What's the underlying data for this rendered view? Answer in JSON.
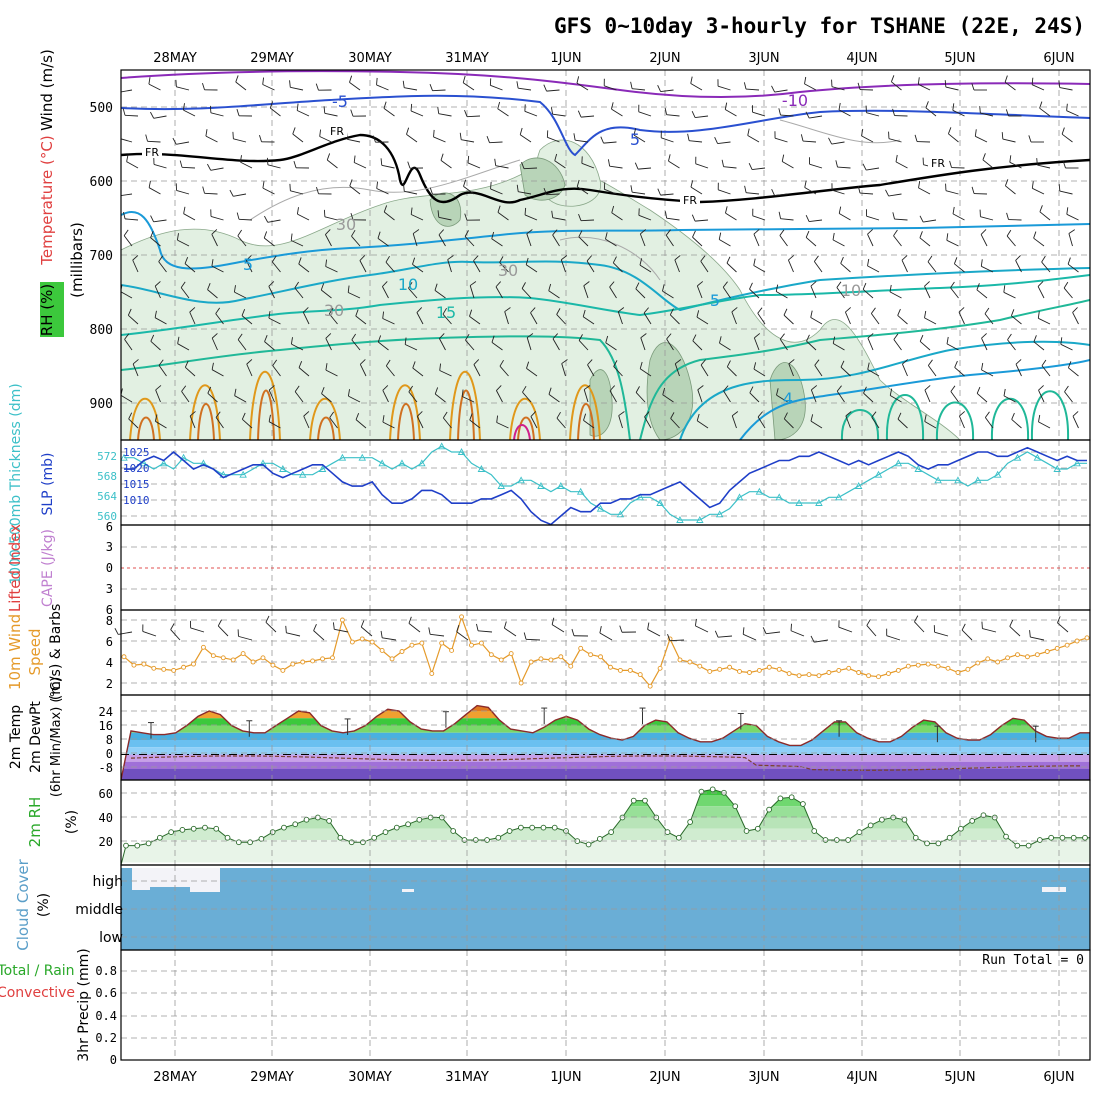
{
  "title": "GFS 0~10day 3-hourly for TSHANE (22E, 24S)",
  "dates": [
    "28MAY",
    "29MAY",
    "30MAY",
    "31MAY",
    "1JUN",
    "2JUN",
    "3JUN",
    "4JUN",
    "5JUN",
    "6JUN"
  ],
  "colors": {
    "grid": "#aaaaaa",
    "rh_fill": "#e2f0e2",
    "rh_fill2": "#b8d4b8",
    "cloud": "#6aaed6",
    "slp": "#1f3fc8",
    "thickness": "#3cc0c8",
    "wind_speed": "#e59a2a",
    "temp_line": "#8b2a2a"
  },
  "panels": {
    "upper": {
      "ylabels": [
        "Wind (m/s)",
        "Temperature (°C)",
        "RH (%)",
        "(millibars)"
      ],
      "ticks": [
        "500",
        "600",
        "700",
        "800",
        "900"
      ],
      "contour_labels": [
        "-5",
        "-10",
        "5",
        "FR",
        "FR",
        "FR",
        "FR",
        "30",
        "30",
        "30",
        "5",
        "10",
        "15",
        "5",
        "10",
        "4"
      ]
    },
    "slp": {
      "ylabel_left": "1000-500mb Thickness (dm)",
      "ylabel_right": "SLP (mb)",
      "ticks_left": [
        "572",
        "568",
        "564",
        "560"
      ],
      "ticks_right": [
        "1025",
        "1020",
        "1015",
        "1010"
      ]
    },
    "cape": {
      "ylabel_left": "Lifted Index",
      "ylabel_right": "CAPE (J/kg)",
      "ticks": [
        "6",
        "3",
        "0",
        "3",
        "6"
      ]
    },
    "wind10m": {
      "ylabel": [
        "10m Wind",
        "Speed",
        "(m/s) & Barbs"
      ],
      "ticks": [
        "8",
        "6",
        "4",
        "2"
      ]
    },
    "temp2m": {
      "ylabel": [
        "2m Temp",
        "2m DewPt",
        "(6hr Min/Max) (°C)"
      ],
      "ticks": [
        "24",
        "16",
        "8",
        "0",
        "-8"
      ]
    },
    "rh2m": {
      "ylabel": [
        "2m RH",
        "(%)"
      ],
      "ticks": [
        "60",
        "40",
        "20"
      ]
    },
    "cloud": {
      "ylabel": [
        "Cloud Cover",
        "(%)"
      ],
      "ticks": [
        "high",
        "middle",
        "low"
      ]
    },
    "precip": {
      "ylabel": [
        "Total / Rain",
        "Convective",
        "3hr Precip (mm)"
      ],
      "ticks": [
        "0.8",
        "0.6",
        "0.4",
        "0.2",
        "0"
      ],
      "run_total": "Run Total = 0"
    }
  },
  "chart_data": [
    {
      "type": "line",
      "name": "slp",
      "x_unit": "3-hourly steps from 27MAY 12Z",
      "series": [
        {
          "name": "SLP (mb)",
          "values": [
            1021,
            1021,
            1023,
            1024,
            1023,
            1025,
            1023,
            1021,
            1022,
            1021,
            1019,
            1020,
            1021,
            1022,
            1022,
            1020,
            1019,
            1020,
            1021,
            1022,
            1022,
            1020,
            1018,
            1017,
            1017,
            1018,
            1015,
            1013,
            1013,
            1014,
            1016,
            1016,
            1015,
            1013,
            1013,
            1013,
            1014,
            1014,
            1015,
            1016,
            1014,
            1011,
            1009,
            1008,
            1010,
            1012,
            1011,
            1011,
            1013,
            1013,
            1014,
            1014,
            1015,
            1015,
            1016,
            1017,
            1018,
            1016,
            1014,
            1012,
            1013,
            1016,
            1018,
            1020,
            1021,
            1022,
            1023,
            1023,
            1024,
            1024,
            1025,
            1024,
            1023,
            1022,
            1023,
            1022,
            1023,
            1024,
            1025,
            1024,
            1022,
            1021,
            1022,
            1022,
            1023,
            1024,
            1025,
            1025,
            1024,
            1024,
            1025,
            1026,
            1025,
            1024,
            1023,
            1024,
            1023,
            1023
          ]
        },
        {
          "name": "Thickness (dm)",
          "values": [
            571,
            571,
            570,
            569,
            570,
            569,
            571,
            570,
            570,
            569,
            568,
            568,
            568,
            569,
            570,
            570,
            569,
            568,
            568,
            568,
            569,
            570,
            571,
            571,
            571,
            571,
            570,
            569,
            570,
            569,
            570,
            572,
            573,
            572,
            572,
            570,
            569,
            568,
            566,
            566,
            567,
            567,
            566,
            565,
            566,
            565,
            565,
            563,
            562,
            561,
            561,
            563,
            564,
            564,
            563,
            561,
            560,
            560,
            560,
            561,
            561,
            562,
            564,
            565,
            565,
            564,
            564,
            563,
            563,
            563,
            563,
            564,
            564,
            565,
            566,
            567,
            568,
            569,
            570,
            570,
            569,
            568,
            567,
            567,
            567,
            566,
            567,
            567,
            568,
            570,
            571,
            572,
            571,
            570,
            569,
            569,
            570,
            570
          ]
        }
      ]
    },
    {
      "type": "line",
      "name": "10m wind speed (m/s)",
      "values": [
        4.5,
        3.7,
        3.8,
        3.4,
        3.3,
        3.2,
        3.5,
        3.8,
        5.4,
        4.6,
        4.4,
        4.2,
        4.8,
        4.0,
        4.4,
        3.7,
        3.2,
        3.8,
        4.0,
        4.1,
        4.3,
        4.4,
        8.0,
        5.9,
        6.2,
        5.9,
        5.1,
        4.3,
        5.0,
        5.6,
        5.8,
        2.9,
        5.8,
        5.1,
        8.3,
        5.6,
        5.8,
        4.7,
        4.2,
        4.8,
        2.0,
        4.0,
        4.3,
        4.2,
        4.5,
        3.6,
        5.3,
        4.7,
        4.5,
        3.5,
        3.2,
        3.2,
        2.8,
        1.7,
        3.4,
        6.2,
        4.2,
        4.0,
        3.6,
        3.1,
        3.3,
        3.5,
        3.1,
        3.0,
        3.2,
        3.5,
        3.3,
        2.9,
        2.7,
        2.8,
        2.7,
        3.0,
        3.2,
        3.4,
        3.0,
        2.7,
        2.6,
        2.9,
        3.2,
        3.6,
        3.7,
        3.8,
        3.6,
        3.4,
        3.0,
        3.3,
        3.9,
        4.3,
        4.0,
        4.4,
        4.7,
        4.5,
        4.7,
        5.0,
        5.3,
        5.6,
        6.0,
        6.3
      ]
    },
    {
      "type": "area",
      "name": "2m temperature (°C)",
      "values": [
        13,
        12,
        11,
        11,
        12,
        16,
        21,
        24,
        22,
        16,
        13,
        12,
        12,
        16,
        20,
        24,
        23,
        16,
        13,
        12,
        13,
        16,
        21,
        25,
        24,
        18,
        14,
        13,
        13,
        17,
        22,
        27,
        26,
        19,
        14,
        13,
        12,
        15,
        19,
        21,
        19,
        14,
        11,
        9,
        8,
        10,
        16,
        19,
        18,
        12,
        9,
        7,
        7,
        9,
        13,
        17,
        16,
        10,
        7,
        5,
        5,
        8,
        13,
        18,
        18,
        12,
        9,
        7,
        7,
        10,
        15,
        19,
        18,
        12,
        9,
        8,
        8,
        11,
        16,
        20,
        19,
        13,
        10,
        9,
        9,
        12
      ]
    },
    {
      "type": "area",
      "name": "2m RH (%)",
      "values": [
        15,
        15,
        17,
        22,
        27,
        29,
        30,
        31,
        30,
        22,
        18,
        18,
        21,
        27,
        31,
        34,
        38,
        40,
        37,
        22,
        18,
        18,
        22,
        27,
        31,
        34,
        38,
        40,
        40,
        28,
        20,
        20,
        20,
        22,
        28,
        31,
        31,
        31,
        31,
        28,
        19,
        16,
        21,
        27,
        40,
        55,
        55,
        40,
        27,
        22,
        36,
        63,
        65,
        62,
        50,
        28,
        30,
        47,
        57,
        58,
        52,
        28,
        20,
        20,
        20,
        27,
        33,
        38,
        40,
        38,
        22,
        17,
        17,
        22,
        30,
        37,
        42,
        40,
        23,
        15,
        15,
        20,
        22,
        22,
        22,
        22
      ]
    },
    {
      "type": "bar",
      "name": "3hr precipitation (mm)",
      "values": [],
      "ylim": [
        0,
        1
      ]
    }
  ]
}
